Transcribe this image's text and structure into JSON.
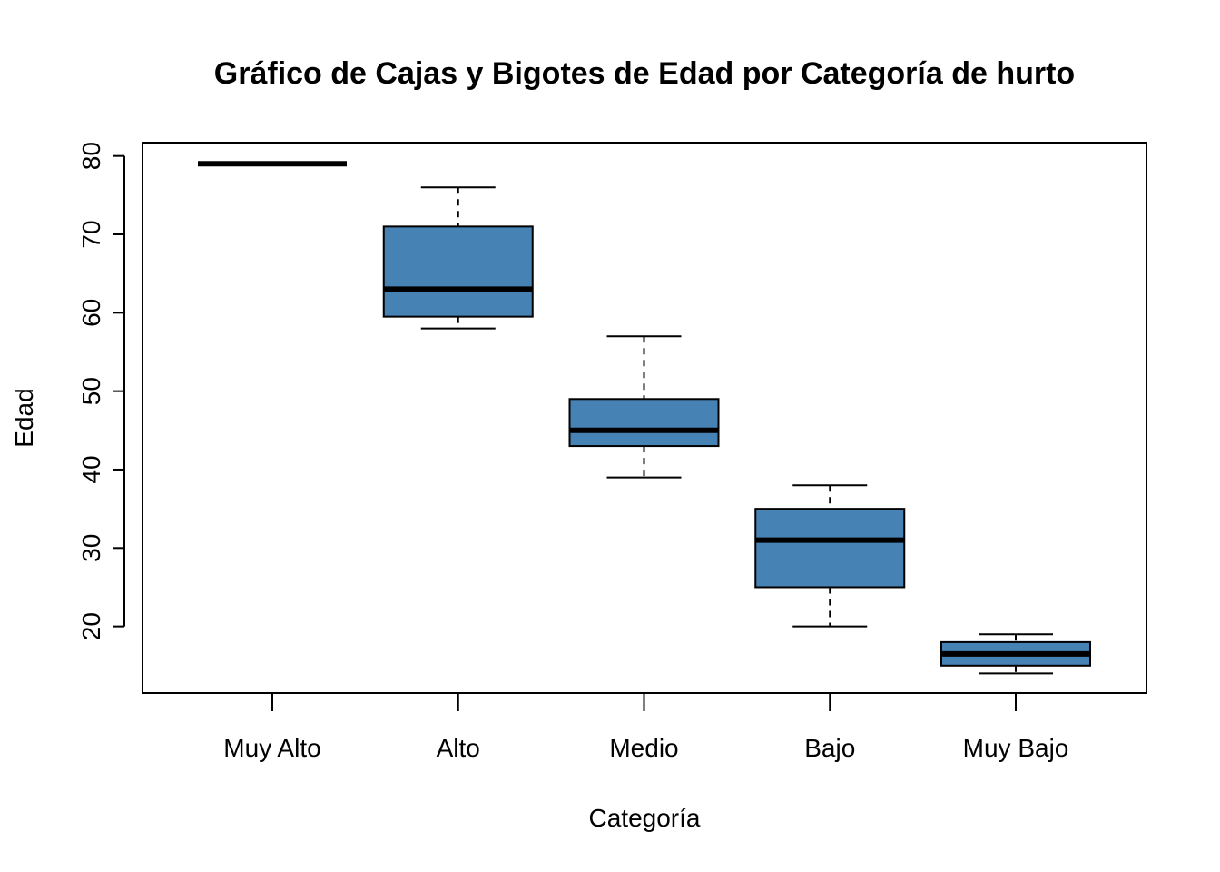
{
  "chart_data": {
    "type": "boxplot",
    "title": "Gráfico de Cajas y Bigotes de Edad por Categoría de hurto",
    "xlabel": "Categoría",
    "ylabel": "Edad",
    "ylim": [
      11.5,
      81.7
    ],
    "yticks": [
      "20",
      "30",
      "40",
      "50",
      "60",
      "70",
      "80"
    ],
    "grid": false,
    "box_color": "#4682B4",
    "categories": [
      "Muy Alto",
      "Alto",
      "Medio",
      "Bajo",
      "Muy Bajo"
    ],
    "boxes": [
      {
        "category": "Muy Alto",
        "min": 79,
        "q1": 79,
        "median": 79,
        "q3": 79,
        "max": 79
      },
      {
        "category": "Alto",
        "min": 58,
        "q1": 59.5,
        "median": 63,
        "q3": 71,
        "max": 76
      },
      {
        "category": "Medio",
        "min": 39,
        "q1": 43,
        "median": 45,
        "q3": 49,
        "max": 57
      },
      {
        "category": "Bajo",
        "min": 20,
        "q1": 25,
        "median": 31,
        "q3": 35,
        "max": 38
      },
      {
        "category": "Muy Bajo",
        "min": 14,
        "q1": 15,
        "median": 16.5,
        "q3": 18,
        "max": 19
      }
    ]
  }
}
